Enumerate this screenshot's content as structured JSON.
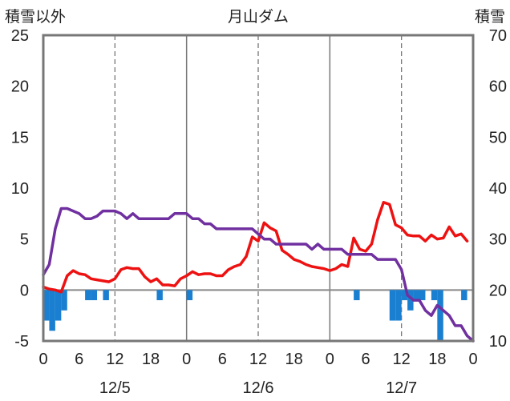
{
  "chart_data": {
    "type": "line",
    "title": "月山ダム",
    "left_axis_title": "積雪以外",
    "right_axis_title": "積雪",
    "y_left": {
      "min": -5,
      "max": 25,
      "ticks": [
        25,
        20,
        15,
        10,
        5,
        0,
        -5
      ]
    },
    "y_right": {
      "min": 10,
      "max": 70,
      "ticks": [
        70,
        60,
        50,
        40,
        30,
        20,
        10
      ]
    },
    "x": {
      "unit": "hours",
      "min": 0,
      "max": 72,
      "tick_step": 6,
      "tick_labels": [
        "0",
        "6",
        "12",
        "18",
        "0",
        "6",
        "12",
        "18",
        "0",
        "6",
        "12",
        "18",
        "0"
      ]
    },
    "date_labels": [
      {
        "label": "12/5",
        "center_hour": 12
      },
      {
        "label": "12/6",
        "center_hour": 36
      },
      {
        "label": "12/7",
        "center_hour": 60
      }
    ],
    "day_boundaries_hours": [
      24,
      48
    ],
    "grid": {
      "dashed_vertical_hours": [
        12,
        36,
        60
      ],
      "horizontal": false
    },
    "colors": {
      "temperature": "#ee1111",
      "snow_depth": "#7030a0",
      "snow_change": "#1a7fd0",
      "frame": "#777777",
      "zero_line": "#888888"
    },
    "series": [
      {
        "axis": "left",
        "color": "#ee1111",
        "points": [
          [
            0,
            0.3
          ],
          [
            1,
            0.1
          ],
          [
            2,
            0
          ],
          [
            3,
            -0.2
          ],
          [
            4,
            1.4
          ],
          [
            5,
            1.9
          ],
          [
            6,
            1.6
          ],
          [
            7,
            1.5
          ],
          [
            8,
            1.1
          ],
          [
            9,
            1
          ],
          [
            10,
            0.9
          ],
          [
            11,
            0.8
          ],
          [
            12,
            1.1
          ],
          [
            13,
            2
          ],
          [
            14,
            2.2
          ],
          [
            15,
            2.1
          ],
          [
            16,
            2.1
          ],
          [
            17,
            1.3
          ],
          [
            18,
            0.8
          ],
          [
            19,
            1.1
          ],
          [
            20,
            0.5
          ],
          [
            21,
            0.5
          ],
          [
            22,
            0.4
          ],
          [
            23,
            1.1
          ],
          [
            24,
            1.4
          ],
          [
            25,
            1.8
          ],
          [
            26,
            1.5
          ],
          [
            27,
            1.6
          ],
          [
            28,
            1.6
          ],
          [
            29,
            1.4
          ],
          [
            30,
            1.4
          ],
          [
            31,
            2
          ],
          [
            32,
            2.3
          ],
          [
            33,
            2.5
          ],
          [
            34,
            3.3
          ],
          [
            35,
            5.2
          ],
          [
            36,
            4.8
          ],
          [
            37,
            6.6
          ],
          [
            38,
            6.1
          ],
          [
            39,
            5.8
          ],
          [
            40,
            3.9
          ],
          [
            41,
            3.5
          ],
          [
            42,
            3
          ],
          [
            43,
            2.8
          ],
          [
            44,
            2.5
          ],
          [
            45,
            2.3
          ],
          [
            46,
            2.2
          ],
          [
            47,
            2.1
          ],
          [
            48,
            1.9
          ],
          [
            49,
            2.1
          ],
          [
            50,
            2.5
          ],
          [
            51,
            2.3
          ],
          [
            52,
            5.1
          ],
          [
            53,
            4
          ],
          [
            54,
            3.8
          ],
          [
            55,
            4.5
          ],
          [
            56,
            6.9
          ],
          [
            57,
            8.6
          ],
          [
            58,
            8.4
          ],
          [
            59,
            6.4
          ],
          [
            60,
            6.1
          ],
          [
            61,
            5.4
          ],
          [
            62,
            5.3
          ],
          [
            63,
            5.3
          ],
          [
            64,
            4.8
          ],
          [
            65,
            5.4
          ],
          [
            66,
            5
          ],
          [
            67,
            5.1
          ],
          [
            68,
            6.2
          ],
          [
            69,
            5.3
          ],
          [
            70,
            5.5
          ],
          [
            71,
            4.8
          ]
        ]
      },
      {
        "axis": "right",
        "color": "#7030a0",
        "points": [
          [
            0,
            23
          ],
          [
            1,
            25
          ],
          [
            2,
            32
          ],
          [
            3,
            36
          ],
          [
            4,
            36
          ],
          [
            5,
            35.5
          ],
          [
            6,
            35
          ],
          [
            7,
            34
          ],
          [
            8,
            34
          ],
          [
            9,
            34.5
          ],
          [
            10,
            35.5
          ],
          [
            11,
            35.5
          ],
          [
            12,
            35.5
          ],
          [
            13,
            35
          ],
          [
            14,
            34
          ],
          [
            15,
            35
          ],
          [
            16,
            34
          ],
          [
            17,
            34
          ],
          [
            18,
            34
          ],
          [
            19,
            34
          ],
          [
            20,
            34
          ],
          [
            21,
            34
          ],
          [
            22,
            35
          ],
          [
            23,
            35
          ],
          [
            24,
            35
          ],
          [
            25,
            34
          ],
          [
            26,
            34
          ],
          [
            27,
            33
          ],
          [
            28,
            33
          ],
          [
            29,
            32
          ],
          [
            30,
            32
          ],
          [
            31,
            32
          ],
          [
            32,
            32
          ],
          [
            33,
            32
          ],
          [
            34,
            32
          ],
          [
            35,
            32
          ],
          [
            36,
            31
          ],
          [
            37,
            30
          ],
          [
            38,
            30
          ],
          [
            39,
            29
          ],
          [
            40,
            29
          ],
          [
            41,
            29
          ],
          [
            42,
            29
          ],
          [
            43,
            29
          ],
          [
            44,
            29
          ],
          [
            45,
            28
          ],
          [
            46,
            29
          ],
          [
            47,
            28
          ],
          [
            48,
            28
          ],
          [
            49,
            28
          ],
          [
            50,
            28
          ],
          [
            51,
            27
          ],
          [
            52,
            27
          ],
          [
            53,
            27
          ],
          [
            54,
            27
          ],
          [
            55,
            27
          ],
          [
            56,
            26
          ],
          [
            57,
            26
          ],
          [
            58,
            26
          ],
          [
            59,
            26
          ],
          [
            60,
            24
          ],
          [
            61,
            19
          ],
          [
            62,
            18
          ],
          [
            63,
            18
          ],
          [
            64,
            16
          ],
          [
            65,
            15
          ],
          [
            66,
            17
          ],
          [
            67,
            16
          ],
          [
            68,
            15
          ],
          [
            69,
            13
          ],
          [
            70,
            13
          ],
          [
            71,
            11
          ],
          [
            72,
            10
          ]
        ]
      },
      {
        "axis": "left",
        "type": "bar",
        "color": "#1a7fd0",
        "points": [
          [
            1,
            -3
          ],
          [
            2,
            -4
          ],
          [
            3,
            -3
          ],
          [
            4,
            -2
          ],
          [
            8,
            -1
          ],
          [
            9,
            -1
          ],
          [
            11,
            -1
          ],
          [
            20,
            -1
          ],
          [
            25,
            -1
          ],
          [
            53,
            -1
          ],
          [
            59,
            -3
          ],
          [
            60,
            -3
          ],
          [
            61,
            -1
          ],
          [
            62,
            -2
          ],
          [
            63,
            -1
          ],
          [
            64,
            -1
          ],
          [
            66,
            -1
          ],
          [
            67,
            -5
          ],
          [
            71,
            -1
          ]
        ]
      }
    ]
  }
}
